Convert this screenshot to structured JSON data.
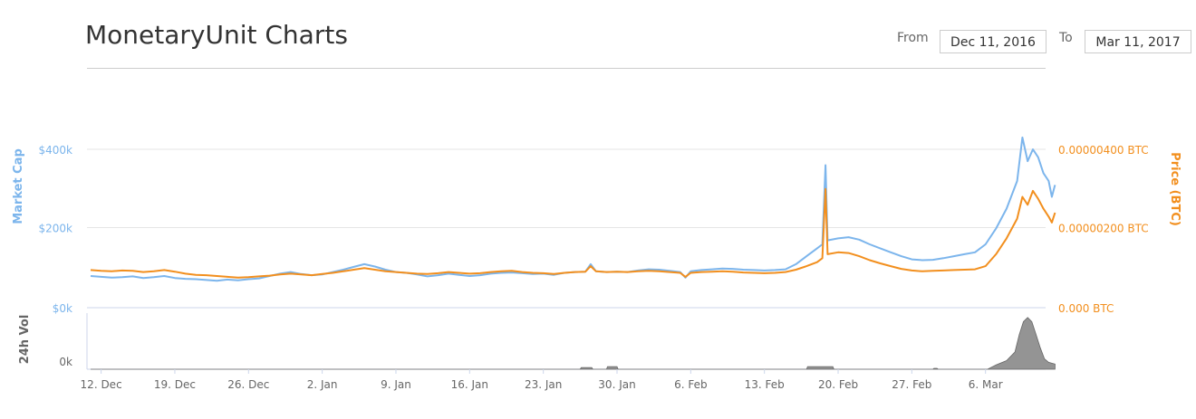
{
  "header": {
    "title": "MonetaryUnit Charts",
    "from_label": "From",
    "from_value": "Dec 11, 2016",
    "to_label": "To",
    "to_value": "Mar 11, 2017"
  },
  "colors": {
    "market_cap": "#7cb5ec",
    "price": "#f7a35c",
    "price_line": "#f28f1e",
    "volume": "#888888",
    "axis_left": "#7cb5ec",
    "axis_right": "#f28f1e"
  },
  "chart_data": [
    {
      "type": "line",
      "x_unit": "days since Dec 11, 2016",
      "xlim": [
        0,
        90
      ],
      "x_ticks": [
        {
          "x": 1,
          "label": "12. Dec"
        },
        {
          "x": 8,
          "label": "19. Dec"
        },
        {
          "x": 15,
          "label": "26. Dec"
        },
        {
          "x": 22,
          "label": "2. Jan"
        },
        {
          "x": 29,
          "label": "9. Jan"
        },
        {
          "x": 36,
          "label": "16. Jan"
        },
        {
          "x": 43,
          "label": "23. Jan"
        },
        {
          "x": 50,
          "label": "30. Jan"
        },
        {
          "x": 57,
          "label": "6. Feb"
        },
        {
          "x": 64,
          "label": "13. Feb"
        },
        {
          "x": 71,
          "label": "20. Feb"
        },
        {
          "x": 78,
          "label": "27. Feb"
        },
        {
          "x": 85,
          "label": "6. Mar"
        }
      ],
      "y_left": {
        "label": "Market Cap",
        "ticks": [
          "$0k",
          "$200k",
          "$400k"
        ],
        "range": [
          0,
          400000
        ]
      },
      "y_right": {
        "label": "Price (BTC)",
        "ticks": [
          "0.000 BTC",
          "0.00000200 BTC",
          "0.00000400 BTC"
        ],
        "range": [
          0,
          4e-06
        ]
      },
      "series": [
        {
          "name": "Market Cap",
          "axis": "left",
          "points": [
            [
              0,
              80000
            ],
            [
              1,
              78000
            ],
            [
              2,
              76000
            ],
            [
              3,
              77000
            ],
            [
              4,
              79000
            ],
            [
              5,
              75000
            ],
            [
              6,
              77000
            ],
            [
              7,
              80000
            ],
            [
              8,
              75000
            ],
            [
              9,
              73000
            ],
            [
              10,
              72000
            ],
            [
              11,
              70000
            ],
            [
              12,
              68000
            ],
            [
              13,
              71000
            ],
            [
              14,
              69000
            ],
            [
              15,
              72000
            ],
            [
              16,
              74000
            ],
            [
              17,
              80000
            ],
            [
              18,
              86000
            ],
            [
              19,
              90000
            ],
            [
              20,
              85000
            ],
            [
              21,
              82000
            ],
            [
              22,
              84000
            ],
            [
              23,
              90000
            ],
            [
              24,
              96000
            ],
            [
              25,
              103000
            ],
            [
              26,
              110000
            ],
            [
              27,
              104000
            ],
            [
              28,
              96000
            ],
            [
              29,
              90000
            ],
            [
              30,
              88000
            ],
            [
              31,
              84000
            ],
            [
              32,
              79000
            ],
            [
              33,
              82000
            ],
            [
              34,
              86000
            ],
            [
              35,
              83000
            ],
            [
              36,
              80000
            ],
            [
              37,
              82000
            ],
            [
              38,
              86000
            ],
            [
              39,
              88000
            ],
            [
              40,
              89000
            ],
            [
              41,
              87000
            ],
            [
              42,
              85000
            ],
            [
              43,
              86000
            ],
            [
              44,
              83000
            ],
            [
              45,
              88000
            ],
            [
              46,
              90000
            ],
            [
              47,
              91000
            ],
            [
              47.5,
              110000
            ],
            [
              48,
              92000
            ],
            [
              49,
              90000
            ],
            [
              50,
              91000
            ],
            [
              51,
              90000
            ],
            [
              52,
              94000
            ],
            [
              53,
              97000
            ],
            [
              54,
              96000
            ],
            [
              55,
              93000
            ],
            [
              56,
              90000
            ],
            [
              56.5,
              76000
            ],
            [
              57,
              92000
            ],
            [
              58,
              95000
            ],
            [
              59,
              97000
            ],
            [
              60,
              99000
            ],
            [
              61,
              98000
            ],
            [
              62,
              96000
            ],
            [
              63,
              95000
            ],
            [
              64,
              94000
            ],
            [
              65,
              95000
            ],
            [
              66,
              97000
            ],
            [
              67,
              110000
            ],
            [
              68,
              130000
            ],
            [
              69,
              150000
            ],
            [
              69.5,
              160000
            ],
            [
              69.8,
              360000
            ],
            [
              70,
              170000
            ],
            [
              71,
              175000
            ],
            [
              72,
              178000
            ],
            [
              73,
              172000
            ],
            [
              74,
              160000
            ],
            [
              75,
              150000
            ],
            [
              76,
              140000
            ],
            [
              77,
              130000
            ],
            [
              78,
              122000
            ],
            [
              79,
              120000
            ],
            [
              80,
              121000
            ],
            [
              81,
              125000
            ],
            [
              82,
              130000
            ],
            [
              83,
              135000
            ],
            [
              84,
              140000
            ],
            [
              85,
              160000
            ],
            [
              86,
              200000
            ],
            [
              87,
              250000
            ],
            [
              88,
              320000
            ],
            [
              88.5,
              430000
            ],
            [
              89,
              370000
            ],
            [
              89.5,
              400000
            ],
            [
              90,
              380000
            ],
            [
              90.5,
              340000
            ],
            [
              91,
              320000
            ],
            [
              91.3,
              280000
            ],
            [
              91.6,
              310000
            ]
          ]
        },
        {
          "name": "Price (BTC)",
          "axis": "right",
          "points": [
            [
              0,
              9.5e-07
            ],
            [
              1,
              9.3e-07
            ],
            [
              2,
              9.2e-07
            ],
            [
              3,
              9.4e-07
            ],
            [
              4,
              9.3e-07
            ],
            [
              5,
              9e-07
            ],
            [
              6,
              9.2e-07
            ],
            [
              7,
              9.5e-07
            ],
            [
              8,
              9.1e-07
            ],
            [
              9,
              8.6e-07
            ],
            [
              10,
              8.3e-07
            ],
            [
              11,
              8.2e-07
            ],
            [
              12,
              8e-07
            ],
            [
              13,
              7.8e-07
            ],
            [
              14,
              7.6e-07
            ],
            [
              15,
              7.7e-07
            ],
            [
              16,
              7.9e-07
            ],
            [
              17,
              8.1e-07
            ],
            [
              18,
              8.4e-07
            ],
            [
              19,
              8.6e-07
            ],
            [
              20,
              8.4e-07
            ],
            [
              21,
              8.2e-07
            ],
            [
              22,
              8.5e-07
            ],
            [
              23,
              8.8e-07
            ],
            [
              24,
              9.2e-07
            ],
            [
              25,
              9.6e-07
            ],
            [
              26,
              1e-06
            ],
            [
              27,
              9.6e-07
            ],
            [
              28,
              9.2e-07
            ],
            [
              29,
              9e-07
            ],
            [
              30,
              8.8e-07
            ],
            [
              31,
              8.6e-07
            ],
            [
              32,
              8.5e-07
            ],
            [
              33,
              8.7e-07
            ],
            [
              34,
              9e-07
            ],
            [
              35,
              8.8e-07
            ],
            [
              36,
              8.6e-07
            ],
            [
              37,
              8.7e-07
            ],
            [
              38,
              9e-07
            ],
            [
              39,
              9.2e-07
            ],
            [
              40,
              9.3e-07
            ],
            [
              41,
              9e-07
            ],
            [
              42,
              8.8e-07
            ],
            [
              43,
              8.7e-07
            ],
            [
              44,
              8.5e-07
            ],
            [
              45,
              8.8e-07
            ],
            [
              46,
              9e-07
            ],
            [
              47,
              9.1e-07
            ],
            [
              47.5,
              1.05e-06
            ],
            [
              48,
              9.2e-07
            ],
            [
              49,
              9e-07
            ],
            [
              50,
              9.1e-07
            ],
            [
              51,
              9e-07
            ],
            [
              52,
              9.2e-07
            ],
            [
              53,
              9.3e-07
            ],
            [
              54,
              9.2e-07
            ],
            [
              55,
              9e-07
            ],
            [
              56,
              8.8e-07
            ],
            [
              56.5,
              7.8e-07
            ],
            [
              57,
              8.8e-07
            ],
            [
              58,
              9e-07
            ],
            [
              59,
              9.1e-07
            ],
            [
              60,
              9.2e-07
            ],
            [
              61,
              9.1e-07
            ],
            [
              62,
              8.9e-07
            ],
            [
              63,
              8.8e-07
            ],
            [
              64,
              8.7e-07
            ],
            [
              65,
              8.8e-07
            ],
            [
              66,
              9e-07
            ],
            [
              67,
              9.6e-07
            ],
            [
              68,
              1.05e-06
            ],
            [
              69,
              1.15e-06
            ],
            [
              69.5,
              1.25e-06
            ],
            [
              69.8,
              3e-06
            ],
            [
              70,
              1.35e-06
            ],
            [
              71,
              1.4e-06
            ],
            [
              72,
              1.38e-06
            ],
            [
              73,
              1.3e-06
            ],
            [
              74,
              1.2e-06
            ],
            [
              75,
              1.12e-06
            ],
            [
              76,
              1.05e-06
            ],
            [
              77,
              9.8e-07
            ],
            [
              78,
              9.4e-07
            ],
            [
              79,
              9.2e-07
            ],
            [
              80,
              9.3e-07
            ],
            [
              81,
              9.4e-07
            ],
            [
              82,
              9.5e-07
            ],
            [
              83,
              9.6e-07
            ],
            [
              84,
              9.7e-07
            ],
            [
              85,
              1.05e-06
            ],
            [
              86,
              1.35e-06
            ],
            [
              87,
              1.75e-06
            ],
            [
              88,
              2.25e-06
            ],
            [
              88.5,
              2.8e-06
            ],
            [
              89,
              2.6e-06
            ],
            [
              89.5,
              2.95e-06
            ],
            [
              90,
              2.75e-06
            ],
            [
              90.5,
              2.5e-06
            ],
            [
              91,
              2.3e-06
            ],
            [
              91.3,
              2.15e-06
            ],
            [
              91.6,
              2.4e-06
            ]
          ]
        }
      ]
    },
    {
      "type": "area",
      "y_label": "24h Vol",
      "y_ticks": [
        "0k"
      ],
      "series": [
        {
          "name": "24h Vol",
          "points": [
            [
              0,
              0
            ],
            [
              46.5,
              0
            ],
            [
              46.6,
              2
            ],
            [
              47.6,
              2
            ],
            [
              47.7,
              0
            ],
            [
              49,
              0
            ],
            [
              49.1,
              3
            ],
            [
              50,
              3
            ],
            [
              50.1,
              0
            ],
            [
              68,
              0
            ],
            [
              68.1,
              3
            ],
            [
              70.5,
              3
            ],
            [
              70.6,
              0
            ],
            [
              80,
              0
            ],
            [
              80.1,
              1
            ],
            [
              80.4,
              1
            ],
            [
              80.5,
              0
            ],
            [
              85.2,
              0
            ],
            [
              86,
              5
            ],
            [
              87,
              10
            ],
            [
              87.8,
              20
            ],
            [
              88.2,
              40
            ],
            [
              88.6,
              55
            ],
            [
              89,
              60
            ],
            [
              89.4,
              55
            ],
            [
              89.8,
              40
            ],
            [
              90.2,
              25
            ],
            [
              90.6,
              12
            ],
            [
              91,
              8
            ],
            [
              91.6,
              6
            ],
            [
              91.6,
              0
            ]
          ],
          "max": 65
        }
      ]
    }
  ]
}
